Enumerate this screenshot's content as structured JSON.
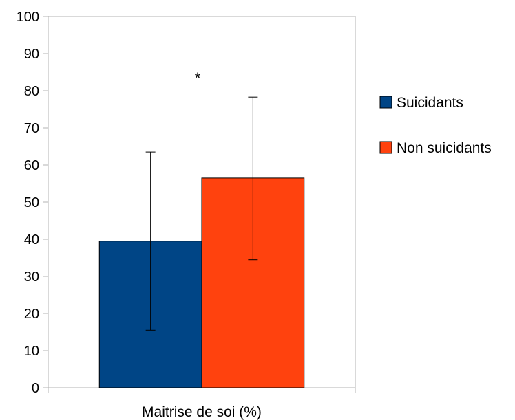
{
  "chart_data": {
    "type": "bar",
    "categories": [
      "Maitrise de soi (%)"
    ],
    "series": [
      {
        "name": "Suicidants",
        "values": [
          39.5
        ],
        "error_low": [
          15.5
        ],
        "error_high": [
          63.5
        ],
        "color": "#004586"
      },
      {
        "name": "Non suicidants",
        "values": [
          56.5
        ],
        "error_low": [
          34.5
        ],
        "error_high": [
          78.3
        ],
        "color": "#FF420E"
      }
    ],
    "ylim": [
      0,
      100
    ],
    "yticks": [
      "0",
      "10",
      "20",
      "30",
      "40",
      "50",
      "60",
      "70",
      "80",
      "90",
      "100"
    ],
    "annotation": "*",
    "legend_position": "right",
    "grid": false
  }
}
